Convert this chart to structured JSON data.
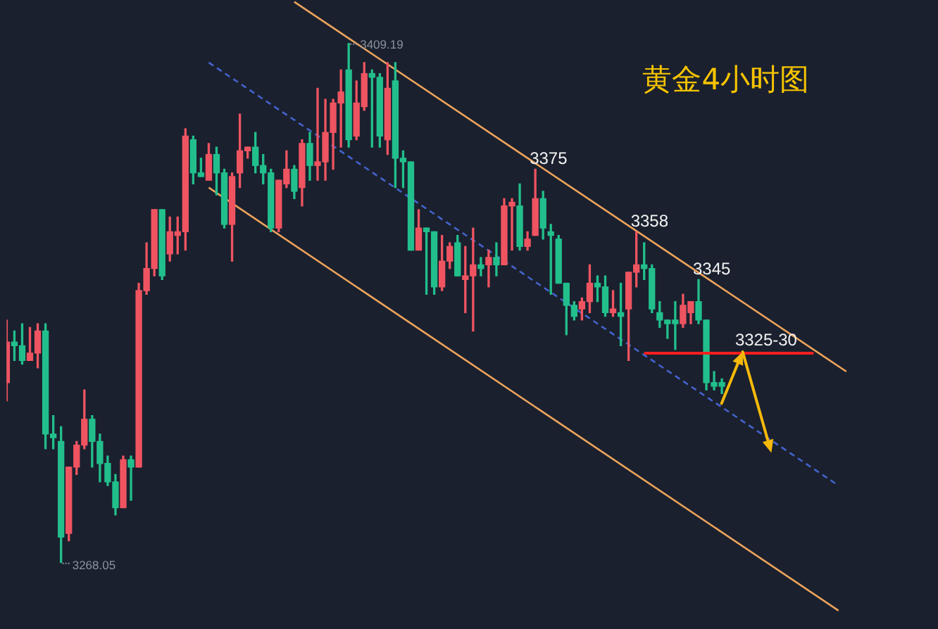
{
  "chart_data": {
    "type": "candlestick",
    "title": "黄金4小时图",
    "categories": [
      null,
      null,
      null,
      null,
      null,
      null,
      null,
      null,
      null,
      null,
      null,
      null,
      null,
      null,
      null,
      null,
      null,
      null,
      null,
      null,
      null,
      null,
      null,
      null,
      null,
      null,
      null,
      null,
      null,
      null,
      null,
      null,
      null,
      null,
      null,
      null,
      null,
      null,
      null,
      null,
      null,
      null,
      null,
      null,
      null,
      null,
      null,
      null,
      null,
      null,
      null,
      null,
      null,
      null,
      null,
      null,
      null,
      null,
      null,
      null,
      null,
      null,
      null,
      null,
      null,
      null,
      null,
      null,
      null,
      null,
      null,
      null,
      null,
      null,
      null,
      null,
      null,
      null,
      null,
      null,
      null,
      null,
      null,
      null,
      null,
      null,
      null,
      null,
      null,
      null,
      null,
      null,
      null,
      null,
      null,
      null,
      null,
      null,
      null,
      null,
      null,
      null,
      null,
      null,
      null,
      null,
      null,
      null,
      null,
      null,
      null,
      null,
      null,
      null,
      null,
      null,
      null,
      null,
      null,
      null
    ],
    "ohlc": [
      [
        3317,
        3334,
        3312,
        3328
      ],
      [
        3328,
        3331,
        3323,
        3327
      ],
      [
        3327,
        3333,
        3322,
        3323
      ],
      [
        3323,
        3332,
        3323,
        3325
      ],
      [
        3325,
        3333,
        3321,
        3331
      ],
      [
        3331,
        3333,
        3299,
        3303
      ],
      [
        3303,
        3308,
        3299,
        3302
      ],
      [
        3301,
        3305,
        3268.05,
        3275
      ],
      [
        3276,
        3294,
        3274,
        3294
      ],
      [
        3294,
        3301,
        3292,
        3300
      ],
      [
        3300,
        3315,
        3299,
        3307
      ],
      [
        3307,
        3308,
        3294,
        3301
      ],
      [
        3301,
        3303,
        3290,
        3295
      ],
      [
        3295,
        3297,
        3289,
        3290
      ],
      [
        3290,
        3292,
        3281,
        3283
      ],
      [
        3283,
        3297,
        3283,
        3296
      ],
      [
        3296,
        3297,
        3285,
        3294
      ],
      [
        3294,
        3344,
        3294,
        3342
      ],
      [
        3342,
        3355,
        3341,
        3348
      ],
      [
        3348,
        3364,
        3346,
        3364
      ],
      [
        3364,
        3364,
        3345,
        3346
      ],
      [
        3352,
        3362,
        3350,
        3358
      ],
      [
        3357,
        3362,
        3352,
        3358
      ],
      [
        3358,
        3386,
        3353,
        3384
      ],
      [
        3383,
        3384,
        3371,
        3374
      ],
      [
        3374,
        3378,
        3373,
        3373
      ],
      [
        3372,
        3382,
        3372,
        3379
      ],
      [
        3379,
        3381,
        3368,
        3374
      ],
      [
        3374,
        3375,
        3359,
        3360
      ],
      [
        3360,
        3374,
        3350,
        3373
      ],
      [
        3374,
        3390,
        3370,
        3380
      ],
      [
        3380,
        3381,
        3378,
        3381
      ],
      [
        3381,
        3385,
        3374,
        3376
      ],
      [
        3376,
        3379,
        3371,
        3374
      ],
      [
        3374,
        3375,
        3358,
        3359
      ],
      [
        3359,
        3372,
        3358,
        3372
      ],
      [
        3371,
        3380,
        3370,
        3375
      ],
      [
        3375,
        3376,
        3367,
        3369
      ],
      [
        3370,
        3383,
        3365,
        3382
      ],
      [
        3382,
        3385,
        3372,
        3376
      ],
      [
        3376,
        3397,
        3372,
        3377
      ],
      [
        3377,
        3394,
        3372,
        3385
      ],
      [
        3385,
        3394,
        3375,
        3393
      ],
      [
        3393,
        3402,
        3381,
        3396
      ],
      [
        3402,
        3409.19,
        3381,
        3383
      ],
      [
        3384,
        3399,
        3383,
        3393
      ],
      [
        3392,
        3404,
        3391,
        3401
      ],
      [
        3401,
        3402,
        3381,
        3400
      ],
      [
        3400,
        3401,
        3381,
        3384
      ],
      [
        3383,
        3404,
        3379,
        3397
      ],
      [
        3399,
        3404,
        3370,
        3378
      ],
      [
        3378,
        3380,
        3370,
        3377
      ],
      [
        3377,
        3377,
        3353,
        3353
      ],
      [
        3353,
        3364,
        3353,
        3359
      ],
      [
        3359,
        3359,
        3341,
        3358
      ],
      [
        3358,
        3358,
        3341,
        3343
      ],
      [
        3343,
        3357,
        3342,
        3350
      ],
      [
        3350,
        3355,
        3348,
        3354
      ],
      [
        3355,
        3357,
        3346,
        3346
      ],
      [
        3345,
        3354,
        3336,
        3346
      ],
      [
        3346,
        3359,
        3331,
        3349
      ],
      [
        3349,
        3351,
        3346,
        3348
      ],
      [
        3349,
        3353,
        3343,
        3351
      ],
      [
        3351,
        3355,
        3346,
        3349
      ],
      [
        3349,
        3367,
        3349,
        3365
      ],
      [
        3365,
        3367,
        3353,
        3366
      ],
      [
        3365,
        3371,
        3353,
        3354
      ],
      [
        3354,
        3358,
        3353,
        3356
      ],
      [
        3357,
        3375,
        3357,
        3367
      ],
      [
        3367,
        3369,
        3356,
        3359
      ],
      [
        3358,
        3360,
        3341,
        3357
      ],
      [
        3356,
        3357,
        3344,
        3344
      ],
      [
        3344,
        3344,
        3330,
        3338
      ],
      [
        3338,
        3339,
        3334,
        3335
      ],
      [
        3337,
        3340,
        3334,
        3339
      ],
      [
        3339,
        3349,
        3336,
        3344
      ],
      [
        3344,
        3346,
        3339,
        3343
      ],
      [
        3343,
        3346,
        3335,
        3336
      ],
      [
        3336,
        3342,
        3335,
        3337
      ],
      [
        3336,
        3344,
        3327,
        3335
      ],
      [
        3337,
        3347,
        3323,
        3347
      ],
      [
        3347,
        3358,
        3343,
        3349
      ],
      [
        3349,
        3355,
        3345,
        3348
      ],
      [
        3348,
        3349,
        3336,
        3337
      ],
      [
        3336,
        3339,
        3332,
        3334
      ],
      [
        3334,
        3334,
        3329,
        3333
      ],
      [
        3334,
        3339,
        3326,
        3333
      ],
      [
        3333,
        3341,
        3332,
        3338
      ],
      [
        3336,
        3339,
        3333,
        3339
      ],
      [
        3339,
        3345,
        3333,
        3334
      ],
      [
        3334,
        3334,
        3315,
        3317
      ],
      [
        3317,
        3320,
        3315,
        3316
      ],
      [
        3317,
        3318,
        3314,
        3316
      ],
      null,
      null,
      null,
      null,
      null,
      null,
      null,
      null,
      null,
      null,
      null,
      null,
      null,
      null,
      null,
      null,
      null,
      null,
      null,
      null,
      null,
      null,
      null,
      null,
      null,
      null,
      null
    ],
    "colors": [
      "#ef5461",
      "#22bf8c",
      "#22bf8c",
      "#ef5461",
      "#ef5461",
      "#22bf8c",
      "#22bf8c",
      "#22bf8c",
      "#ef5461",
      "#ef5461",
      "#ef5461",
      "#22bf8c",
      "#22bf8c",
      "#22bf8c",
      "#22bf8c",
      "#ef5461",
      "#22bf8c",
      "#ef5461",
      "#ef5461",
      "#ef5461",
      "#22bf8c",
      "#ef5461",
      "#ef5461",
      "#ef5461",
      "#22bf8c",
      "#22bf8c",
      "#ef5461",
      "#22bf8c",
      "#22bf8c",
      "#ef5461",
      "#ef5461",
      "#ef5461",
      "#22bf8c",
      "#22bf8c",
      "#22bf8c",
      "#ef5461",
      "#ef5461",
      "#22bf8c",
      "#ef5461",
      "#22bf8c",
      "#ef5461",
      "#ef5461",
      "#ef5461",
      "#ef5461",
      "#22bf8c",
      "#ef5461",
      "#ef5461",
      "#22bf8c",
      "#22bf8c",
      "#ef5461",
      "#22bf8c",
      "#22bf8c",
      "#22bf8c",
      "#ef5461",
      "#22bf8c",
      "#22bf8c",
      "#ef5461",
      "#ef5461",
      "#22bf8c",
      "#ef5461",
      "#ef5461",
      "#22bf8c",
      "#ef5461",
      "#22bf8c",
      "#ef5461",
      "#ef5461",
      "#22bf8c",
      "#ef5461",
      "#ef5461",
      "#22bf8c",
      "#22bf8c",
      "#22bf8c",
      "#22bf8c",
      "#22bf8c",
      "#ef5461",
      "#ef5461",
      "#22bf8c",
      "#22bf8c",
      "#ef5461",
      "#22bf8c",
      "#ef5461",
      "#ef5461",
      "#22bf8c",
      "#22bf8c",
      "#22bf8c",
      "#22bf8c",
      "#22bf8c",
      "#ef5461",
      "#ef5461",
      "#22bf8c",
      "#22bf8c",
      "#22bf8c",
      "#22bf8c",
      null,
      null,
      null,
      null,
      null,
      null,
      null,
      null,
      null,
      null,
      null,
      null,
      null,
      null,
      null,
      null,
      null,
      null,
      null,
      null,
      null,
      null,
      null,
      null,
      null,
      null,
      null
    ],
    "series": [
      {
        "type": "line",
        "color": "#eda35b",
        "values": [
          null,
          null,
          null,
          null,
          null,
          null,
          null,
          null,
          null,
          null,
          null,
          null,
          null,
          null,
          null,
          null,
          null,
          null,
          null,
          null,
          null,
          null,
          null,
          null,
          null,
          null,
          null,
          null,
          null,
          null,
          null,
          null,
          null,
          null,
          null,
          null,
          null,
          3420.5,
          null,
          null,
          null,
          null,
          null,
          null,
          null,
          null,
          null,
          null,
          null,
          null,
          null,
          null,
          null,
          null,
          null,
          null,
          null,
          null,
          null,
          null,
          null,
          null,
          null,
          null,
          null,
          null,
          null,
          null,
          null,
          null,
          null,
          null,
          null,
          null,
          null,
          null,
          null,
          null,
          null,
          null,
          null,
          null,
          null,
          null,
          null,
          null,
          null,
          null,
          null,
          null,
          null,
          null,
          null,
          null,
          null,
          null,
          null,
          null,
          null,
          null,
          null,
          null,
          null,
          null,
          null,
          null,
          null,
          null,
          3320,
          null,
          null,
          null,
          null,
          null,
          null,
          null,
          null,
          null,
          null,
          null
        ]
      },
      {
        "type": "line",
        "color": "#eda35b",
        "values": [
          null,
          null,
          null,
          null,
          null,
          null,
          null,
          null,
          null,
          null,
          null,
          null,
          null,
          null,
          null,
          null,
          null,
          null,
          null,
          null,
          null,
          null,
          null,
          null,
          null,
          null,
          3370,
          null,
          null,
          null,
          null,
          null,
          null,
          null,
          null,
          null,
          null,
          null,
          null,
          null,
          null,
          null,
          null,
          null,
          null,
          null,
          null,
          null,
          null,
          null,
          null,
          null,
          null,
          null,
          null,
          null,
          null,
          null,
          null,
          null,
          null,
          null,
          null,
          null,
          null,
          null,
          null,
          null,
          null,
          null,
          null,
          null,
          null,
          null,
          null,
          null,
          null,
          null,
          null,
          null,
          null,
          null,
          null,
          null,
          null,
          null,
          null,
          null,
          null,
          null,
          null,
          null,
          null,
          null,
          null,
          null,
          null,
          null,
          null,
          null,
          null,
          null,
          null,
          null,
          null,
          null,
          null,
          3255,
          null,
          null,
          null,
          null,
          null,
          null,
          null,
          null,
          null,
          null,
          null,
          null
        ]
      },
      {
        "type": "line",
        "color": "#4463cc",
        "line_style": "dashed",
        "values": [
          null,
          null,
          null,
          null,
          null,
          null,
          null,
          null,
          null,
          null,
          null,
          null,
          null,
          null,
          null,
          null,
          null,
          null,
          null,
          null,
          null,
          null,
          null,
          null,
          null,
          null,
          3404,
          null,
          null,
          null,
          null,
          null,
          null,
          null,
          null,
          null,
          null,
          null,
          null,
          null,
          null,
          null,
          null,
          null,
          null,
          null,
          null,
          null,
          null,
          null,
          null,
          null,
          null,
          null,
          null,
          null,
          null,
          null,
          null,
          null,
          null,
          null,
          null,
          null,
          null,
          null,
          null,
          null,
          null,
          null,
          null,
          null,
          null,
          null,
          null,
          null,
          null,
          null,
          null,
          null,
          null,
          null,
          null,
          null,
          null,
          null,
          null,
          null,
          null,
          null,
          null,
          null,
          null,
          null,
          null,
          null,
          null,
          null,
          null,
          null,
          null,
          null,
          null,
          null,
          null,
          null,
          null,
          3289,
          null,
          null,
          null,
          null,
          null,
          null,
          null,
          null,
          null,
          null,
          null,
          null
        ]
      }
    ],
    "ylim": [
      3250,
      3421
    ],
    "tick_labels": false,
    "ref_lines": [
      {
        "axis": "y",
        "value": 3325,
        "label": "3325-30",
        "color": "#ff1f1f"
      }
    ],
    "annotations": [
      "3409.19",
      "3268.05",
      {
        "text": "3375",
        "y": 3375
      },
      {
        "text": "3358",
        "y": 3358
      },
      {
        "text": "3345",
        "y": 3345
      }
    ]
  }
}
